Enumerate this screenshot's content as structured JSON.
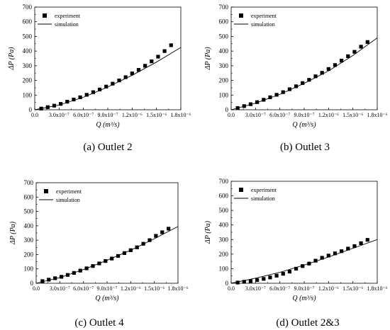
{
  "chart_data": [
    {
      "type": "scatter",
      "caption": "(a) Outlet 2",
      "xlabel": "Q (m³/s)",
      "ylabel": "ΔP (Pa)",
      "ylim": [
        0,
        700
      ],
      "xlim": [
        0,
        1.8e-06
      ],
      "yticks": [
        "0",
        "100",
        "200",
        "300",
        "400",
        "500",
        "600",
        "700"
      ],
      "xticks": [
        "0.0",
        "3.0x10⁻⁷",
        "6.0x10⁻⁷",
        "9.0x10⁻⁷",
        "1.2x10⁻⁶",
        "1.5x10⁻⁶",
        "1.8x10⁻⁶"
      ],
      "legend": [
        "experiment",
        "simulation"
      ],
      "legend_position": "top-left",
      "experiment": {
        "x": [
          8e-08,
          1.6e-07,
          2.4e-07,
          3.2e-07,
          4e-07,
          4.8e-07,
          5.6e-07,
          6.4e-07,
          7.2e-07,
          8e-07,
          8.8e-07,
          9.6e-07,
          1.04e-06,
          1.12e-06,
          1.2e-06,
          1.28e-06,
          1.36e-06,
          1.44e-06,
          1.52e-06,
          1.6e-06,
          1.68e-06
        ],
        "y": [
          8,
          18,
          28,
          40,
          55,
          70,
          85,
          102,
          120,
          138,
          158,
          178,
          200,
          222,
          248,
          272,
          300,
          330,
          362,
          400,
          440
        ]
      },
      "simulation": {
        "x": [
          0,
          3e-07,
          6e-07,
          9e-07,
          1.2e-06,
          1.5e-06,
          1.8e-06
        ],
        "y": [
          0,
          32,
          85,
          155,
          235,
          325,
          425
        ]
      }
    },
    {
      "type": "scatter",
      "caption": "(b) Outlet 3",
      "xlabel": "Q (m³/s)",
      "ylabel": "ΔP (Pa)",
      "ylim": [
        0,
        700
      ],
      "xlim": [
        0,
        1.8e-06
      ],
      "yticks": [
        "0",
        "100",
        "200",
        "300",
        "400",
        "500",
        "600",
        "700"
      ],
      "xticks": [
        "0.0",
        "3.0x10⁻⁷",
        "6.0x10⁻⁷",
        "9.0x10⁻⁷",
        "1.2x10⁻⁶",
        "1.5x10⁻⁶",
        "1.8x10⁻⁶"
      ],
      "legend": [
        "experiment",
        "simulation"
      ],
      "legend_position": "top-left",
      "experiment": {
        "x": [
          8e-08,
          1.6e-07,
          2.4e-07,
          3.2e-07,
          4e-07,
          4.8e-07,
          5.6e-07,
          6.4e-07,
          7.2e-07,
          8e-07,
          8.8e-07,
          9.6e-07,
          1.04e-06,
          1.12e-06,
          1.2e-06,
          1.28e-06,
          1.36e-06,
          1.44e-06,
          1.52e-06,
          1.6e-06,
          1.68e-06
        ],
        "y": [
          12,
          25,
          38,
          52,
          68,
          85,
          102,
          120,
          140,
          160,
          182,
          204,
          228,
          252,
          278,
          305,
          335,
          365,
          395,
          430,
          462
        ]
      },
      "simulation": {
        "x": [
          0,
          3e-07,
          6e-07,
          9e-07,
          1.2e-06,
          1.5e-06,
          1.8e-06
        ],
        "y": [
          0,
          45,
          105,
          180,
          265,
          370,
          490
        ]
      }
    },
    {
      "type": "scatter",
      "caption": "(c) Outlet 4",
      "xlabel": "Q (m³/s)",
      "ylabel": "ΔP (Pa)",
      "ylim": [
        0,
        700
      ],
      "xlim": [
        0,
        1.8e-06
      ],
      "yticks": [
        "0",
        "100",
        "200",
        "300",
        "400",
        "500",
        "600",
        "700"
      ],
      "xticks": [
        "0.0",
        "3.0x10⁻⁷",
        "6.0x10⁻⁷",
        "9.0x10⁻⁷",
        "1.2x10⁻⁶",
        "1.5x10⁻⁶",
        "1.8x10⁻⁶"
      ],
      "legend": [
        "experiment",
        "simulation"
      ],
      "legend_position": "top-left",
      "experiment": {
        "x": [
          8e-08,
          1.6e-07,
          2.4e-07,
          3.2e-07,
          4e-07,
          4.8e-07,
          5.6e-07,
          6.4e-07,
          7.2e-07,
          8e-07,
          8.8e-07,
          9.6e-07,
          1.04e-06,
          1.12e-06,
          1.2e-06,
          1.28e-06,
          1.36e-06,
          1.44e-06,
          1.52e-06,
          1.6e-06,
          1.68e-06
        ],
        "y": [
          15,
          25,
          35,
          45,
          58,
          72,
          88,
          104,
          120,
          138,
          155,
          172,
          190,
          210,
          230,
          250,
          275,
          300,
          330,
          355,
          380
        ]
      },
      "simulation": {
        "x": [
          0,
          3e-07,
          6e-07,
          9e-07,
          1.2e-06,
          1.5e-06,
          1.8e-06
        ],
        "y": [
          0,
          40,
          95,
          160,
          230,
          310,
          395
        ]
      }
    },
    {
      "type": "scatter",
      "caption": "(d) Outlet 2&3",
      "xlabel": "Q (m³/s)",
      "ylabel": "ΔP (Pa)",
      "ylim": [
        0,
        700
      ],
      "xlim": [
        0,
        1.8e-06
      ],
      "yticks": [
        "0",
        "100",
        "200",
        "300",
        "400",
        "500",
        "600",
        "700"
      ],
      "xticks": [
        "0.0",
        "3.0x10⁻⁷",
        "6.0x10⁻⁷",
        "9.0x10⁻⁷",
        "1.2x10⁻⁶",
        "1.5x10⁻⁶",
        "1.8x10⁻⁶"
      ],
      "legend": [
        "experiment",
        "simulation"
      ],
      "legend_position": "top-left",
      "experiment": {
        "x": [
          8e-08,
          1.6e-07,
          2.4e-07,
          3.2e-07,
          4e-07,
          4.8e-07,
          5.6e-07,
          6.4e-07,
          7.2e-07,
          8e-07,
          8.8e-07,
          9.6e-07,
          1.04e-06,
          1.12e-06,
          1.2e-06,
          1.28e-06,
          1.36e-06,
          1.44e-06,
          1.52e-06,
          1.6e-06,
          1.68e-06
        ],
        "y": [
          5,
          10,
          15,
          22,
          30,
          40,
          52,
          65,
          80,
          100,
          118,
          135,
          155,
          175,
          190,
          205,
          220,
          238,
          255,
          275,
          298
        ]
      },
      "simulation": {
        "x": [
          0,
          3e-07,
          6e-07,
          9e-07,
          1.2e-06,
          1.5e-06,
          1.8e-06
        ],
        "y": [
          0,
          35,
          75,
          125,
          180,
          240,
          300
        ]
      }
    }
  ]
}
